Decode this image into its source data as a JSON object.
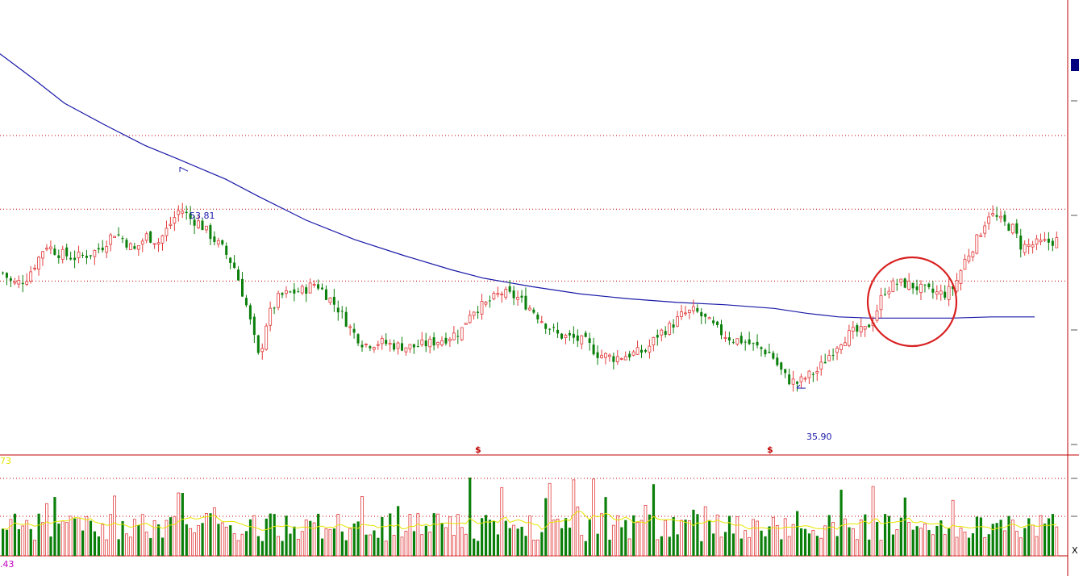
{
  "colors": {
    "up": "#e23b3b",
    "down": "#0a7f0a",
    "ma_line": "#1a1aa8",
    "vol_ma": "#e6e600",
    "grid": "#c00000",
    "frame": "#c00000",
    "annotation": "#1a1aa8",
    "marker": "#c00000",
    "circle": "#d92020",
    "label_left_top": "#e6e600",
    "label_left_bottom": "#c000c0"
  },
  "labels": {
    "high": "53.81",
    "low": "35.90",
    "marker1": "$",
    "marker2": "$",
    "vol_top": "73",
    "vol_bottom": ".43",
    "corner": "X"
  },
  "chart_data": {
    "type": "candlestick",
    "price_panel": {
      "ylim": [
        30.76,
        59.3
      ],
      "gridlines": [
        56.43,
        50.33,
        44.37
      ],
      "high_annotation": 53.81,
      "low_annotation": 35.9
    },
    "ma_line": [
      [
        0,
        63.2
      ],
      [
        40,
        61.2
      ],
      [
        80,
        59.1
      ],
      [
        130,
        57.3
      ],
      [
        180,
        55.6
      ],
      [
        220,
        54.5
      ],
      [
        280,
        52.8
      ],
      [
        320,
        51.4
      ],
      [
        380,
        49.4
      ],
      [
        440,
        47.8
      ],
      [
        500,
        46.5
      ],
      [
        560,
        45.3
      ],
      [
        600,
        44.6
      ],
      [
        660,
        43.9
      ],
      [
        720,
        43.3
      ],
      [
        780,
        42.9
      ],
      [
        840,
        42.6
      ],
      [
        900,
        42.4
      ],
      [
        960,
        42.1
      ],
      [
        1000,
        41.7
      ],
      [
        1040,
        41.4
      ],
      [
        1080,
        41.3
      ],
      [
        1130,
        41.3
      ],
      [
        1180,
        41.3
      ],
      [
        1230,
        41.4
      ],
      [
        1283,
        41.4
      ]
    ],
    "price_points": [
      [
        0,
        45.2
      ],
      [
        15,
        44.1
      ],
      [
        30,
        44.5
      ],
      [
        45,
        46.1
      ],
      [
        55,
        47.4
      ],
      [
        70,
        46.7
      ],
      [
        90,
        46.3
      ],
      [
        110,
        46.6
      ],
      [
        125,
        47.2
      ],
      [
        140,
        48.4
      ],
      [
        150,
        47.9
      ],
      [
        165,
        46.9
      ],
      [
        180,
        48.1
      ],
      [
        195,
        47.6
      ],
      [
        208,
        48.9
      ],
      [
        222,
        50.4
      ],
      [
        235,
        49.5
      ],
      [
        245,
        49.2
      ],
      [
        260,
        48.1
      ],
      [
        275,
        47.0
      ],
      [
        290,
        45.4
      ],
      [
        305,
        42.1
      ],
      [
        320,
        37.8
      ],
      [
        330,
        41.3
      ],
      [
        345,
        43.1
      ],
      [
        360,
        43.4
      ],
      [
        375,
        43.6
      ],
      [
        390,
        44.2
      ],
      [
        405,
        43.1
      ],
      [
        420,
        41.9
      ],
      [
        435,
        40.2
      ],
      [
        450,
        39.1
      ],
      [
        470,
        39.3
      ],
      [
        490,
        39.0
      ],
      [
        510,
        38.9
      ],
      [
        530,
        39.2
      ],
      [
        550,
        39.6
      ],
      [
        570,
        40.2
      ],
      [
        582,
        41.9
      ],
      [
        600,
        42.4
      ],
      [
        620,
        43.4
      ],
      [
        640,
        43.0
      ],
      [
        660,
        41.9
      ],
      [
        675,
        40.8
      ],
      [
        690,
        39.9
      ],
      [
        710,
        39.6
      ],
      [
        725,
        39.3
      ],
      [
        740,
        38.3
      ],
      [
        760,
        38.0
      ],
      [
        780,
        38.3
      ],
      [
        800,
        38.6
      ],
      [
        815,
        40.0
      ],
      [
        830,
        40.6
      ],
      [
        845,
        41.6
      ],
      [
        860,
        41.9
      ],
      [
        875,
        41.1
      ],
      [
        890,
        40.2
      ],
      [
        905,
        39.6
      ],
      [
        920,
        39.4
      ],
      [
        940,
        38.8
      ],
      [
        955,
        38.3
      ],
      [
        965,
        37.1
      ],
      [
        975,
        36.2
      ],
      [
        988,
        35.9
      ],
      [
        1000,
        36.5
      ],
      [
        1012,
        36.9
      ],
      [
        1025,
        38.1
      ],
      [
        1040,
        39.4
      ],
      [
        1055,
        40.1
      ],
      [
        1070,
        40.2
      ],
      [
        1082,
        41.3
      ],
      [
        1095,
        43.6
      ],
      [
        1110,
        44.2
      ],
      [
        1125,
        44.1
      ],
      [
        1140,
        43.7
      ],
      [
        1155,
        43.4
      ],
      [
        1170,
        43.3
      ],
      [
        1182,
        43.9
      ],
      [
        1195,
        46.1
      ],
      [
        1210,
        47.8
      ],
      [
        1225,
        50.0
      ],
      [
        1240,
        49.3
      ],
      [
        1255,
        48.7
      ],
      [
        1265,
        47.2
      ],
      [
        1280,
        47.4
      ],
      [
        1300,
        47.6
      ],
      [
        1312,
        47.8
      ]
    ],
    "markers_x": [
      593,
      955
    ],
    "volume_panel": {
      "reference_levels": [
        73,
        43
      ],
      "bar_count": 265,
      "ma_window": 10
    }
  }
}
